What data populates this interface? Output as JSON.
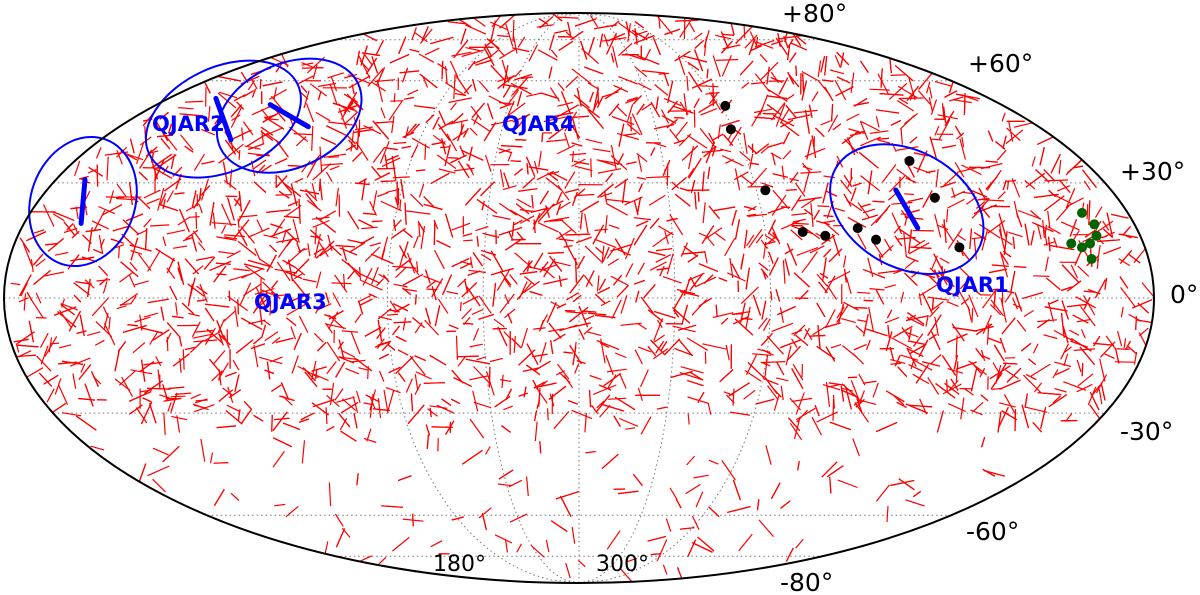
{
  "chart_data": {
    "type": "scatter",
    "projection": "mollweide",
    "grid": true,
    "colors": {
      "vectors": "#ff0000",
      "regions": "#0000ff",
      "sources": "#000000",
      "cluster": "#006400",
      "outline": "#000000"
    },
    "latitude_labels": [
      "+80°",
      "+60°",
      "+30°",
      "0°",
      "-30°",
      "-60°",
      "-80°"
    ],
    "longitude_labels": [
      "180°",
      "300°"
    ],
    "regions": [
      {
        "label": "QJAR1",
        "center": [
          -108,
          23
        ],
        "mean_angle": 30
      },
      {
        "label": "QJAR2",
        "center": [
          143,
          48
        ],
        "mean_angle": 20
      },
      {
        "label": "QJAR3",
        "center": [
          165,
          25
        ],
        "mean_angle": -5
      },
      {
        "label": "QJAR4",
        "center": [
          118,
          49
        ],
        "mean_angle": 60
      }
    ],
    "sources": [
      [
        -62,
        52
      ],
      [
        -59,
        45
      ],
      [
        -118,
        36
      ],
      [
        -119,
        26
      ],
      [
        -63,
        28
      ],
      [
        -79,
        16
      ],
      [
        -90,
        18
      ],
      [
        -95,
        15
      ],
      [
        -72,
        17
      ],
      [
        -121,
        13
      ]
    ],
    "cluster": [
      [
        -165,
        22
      ],
      [
        -167,
        19
      ],
      [
        -166,
        16
      ],
      [
        -163,
        14
      ],
      [
        -160,
        13
      ],
      [
        -157,
        14
      ],
      [
        -162,
        10
      ]
    ]
  }
}
